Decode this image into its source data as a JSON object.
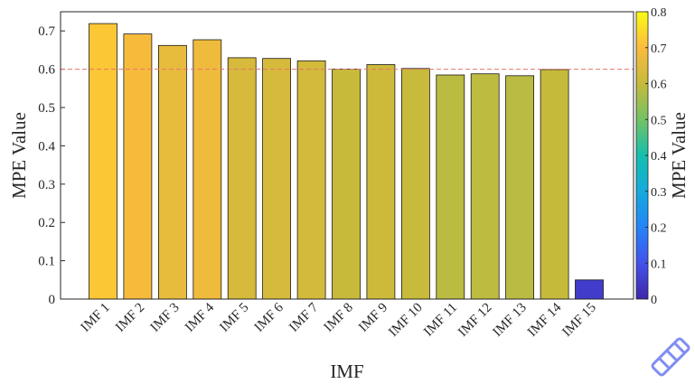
{
  "chart_data": {
    "type": "bar",
    "categories": [
      "IMF 1",
      "IMF 2",
      "IMF 3",
      "IMF 4",
      "IMF 5",
      "IMF 6",
      "IMF 7",
      "IMF 8",
      "IMF 9",
      "IMF 10",
      "IMF 11",
      "IMF 12",
      "IMF 13",
      "IMF 14",
      "IMF 15"
    ],
    "values": [
      0.719,
      0.692,
      0.662,
      0.677,
      0.63,
      0.628,
      0.622,
      0.6,
      0.612,
      0.602,
      0.585,
      0.588,
      0.583,
      0.599,
      0.05
    ],
    "title": "",
    "xlabel": "IMF",
    "ylabel": "MPE Value",
    "ylim": [
      0,
      0.75
    ],
    "yticks": [
      "0",
      "0.1",
      "0.2",
      "0.3",
      "0.4",
      "0.5",
      "0.6",
      "0.7"
    ],
    "reference_line": {
      "value": 0.6,
      "style": "dashed",
      "color": "#e8746e"
    },
    "grid": false,
    "legend": "none",
    "colorbar": {
      "label": "MPE Value",
      "range": [
        0,
        0.8
      ],
      "ticks": [
        "0",
        "0.1",
        "0.2",
        "0.3",
        "0.4",
        "0.5",
        "0.6",
        "0.7",
        "0.8"
      ],
      "colormap": "parula",
      "placement": "right"
    }
  }
}
